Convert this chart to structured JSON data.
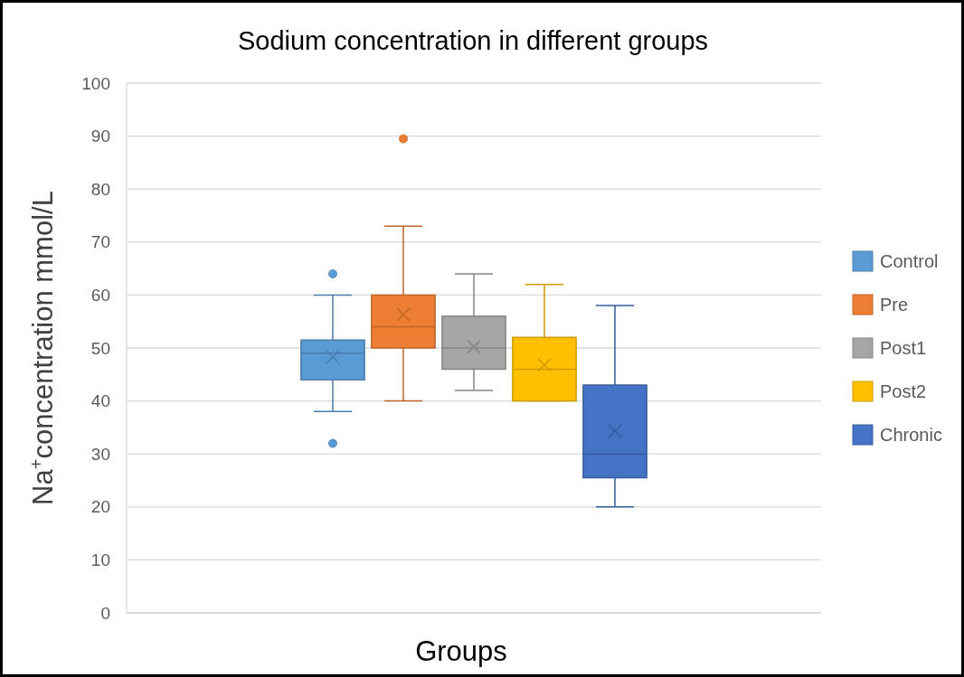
{
  "chart_data": {
    "type": "box",
    "title": "Sodium concentration in different groups",
    "xlabel": "Groups",
    "ylabel": "Na$^{+}$concentration mmol/L",
    "categories": [
      null
    ],
    "ylim": [
      0,
      100
    ],
    "yticks": [
      0,
      10,
      20,
      30,
      40,
      50,
      60,
      70,
      80,
      90,
      100
    ],
    "grid": "y",
    "legend": "right",
    "series": [
      {
        "name": "Control",
        "color": "#5b9bd5",
        "boxes": [
          {
            "low": 38,
            "q1": 44,
            "median": 49,
            "q3": 51.5,
            "high": 60,
            "mean": 48.3,
            "outliers": [
              64,
              32
            ]
          }
        ]
      },
      {
        "name": "Pre",
        "color": "#ed7d31",
        "boxes": [
          {
            "low": 40,
            "q1": 50,
            "median": 54,
            "q3": 60,
            "high": 73,
            "mean": 56.3,
            "outliers": [
              89.5
            ]
          }
        ]
      },
      {
        "name": "Post1",
        "color": "#a5a5a5",
        "boxes": [
          {
            "low": 42,
            "q1": 46,
            "median": 50,
            "q3": 56,
            "high": 64,
            "mean": 50.2
          }
        ]
      },
      {
        "name": "Post2",
        "color": "#ffc000",
        "boxes": [
          {
            "low": 40,
            "q1": 40,
            "median": 46,
            "q3": 52,
            "high": 62,
            "mean": 46.8
          }
        ]
      },
      {
        "name": "Chronic",
        "color": "#4472c4",
        "boxes": [
          {
            "low": 20,
            "q1": 25.5,
            "median": 30,
            "q3": 43,
            "high": 58,
            "mean": 34.3
          }
        ]
      }
    ]
  }
}
